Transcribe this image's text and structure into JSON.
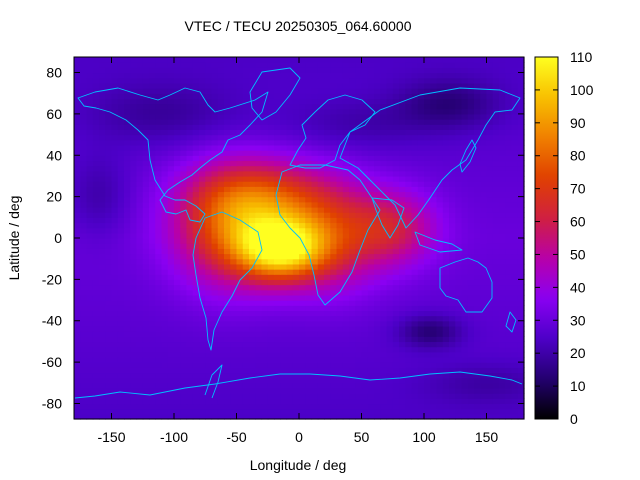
{
  "chart_data": {
    "type": "heatmap",
    "title": "VTEC / TECU 20250305_064.60000",
    "xlabel": "Longitude / deg",
    "ylabel": "Latitude / deg",
    "xlim": [
      -180,
      180
    ],
    "ylim": [
      -87.5,
      87.5
    ],
    "x_ticks": [
      -150,
      -100,
      -50,
      0,
      50,
      100,
      150
    ],
    "y_ticks": [
      -80,
      -60,
      -40,
      -20,
      0,
      20,
      40,
      60,
      80
    ],
    "colorbar": {
      "label": "VTEC / TECU",
      "range": [
        0,
        110
      ],
      "ticks": [
        0,
        10,
        20,
        30,
        40,
        50,
        60,
        70,
        80,
        90,
        100,
        110
      ],
      "palette": [
        "#000000",
        "#240070",
        "#4d00c8",
        "#8a00f2",
        "#b800a8",
        "#d02040",
        "#e04000",
        "#f08000",
        "#f8c000",
        "#ffff20"
      ]
    },
    "grid": {
      "lon_step": 5,
      "lat_step": 2.5
    },
    "features": [
      {
        "name": "background",
        "value": 30
      },
      {
        "name": "equatorial-anomaly-core",
        "lon": -15,
        "lat": -5,
        "value": 105
      },
      {
        "name": "south-america-crest",
        "lon": -55,
        "lat": 5,
        "value": 80
      },
      {
        "name": "atlantic-north-crest",
        "lon": -25,
        "lat": 20,
        "value": 78
      },
      {
        "name": "africa-crest",
        "lon": 25,
        "lat": 0,
        "value": 72
      },
      {
        "name": "indian-ocean-tail",
        "lon": 75,
        "lat": 5,
        "value": 60
      },
      {
        "name": "arctic-trough",
        "lon": 120,
        "lat": 65,
        "value": 12
      },
      {
        "name": "southern-trough",
        "lon": 105,
        "lat": -45,
        "value": 10
      },
      {
        "name": "antarctic-low",
        "lon": 150,
        "lat": -70,
        "value": 14
      }
    ],
    "coastline_color": "#00c0ff"
  }
}
